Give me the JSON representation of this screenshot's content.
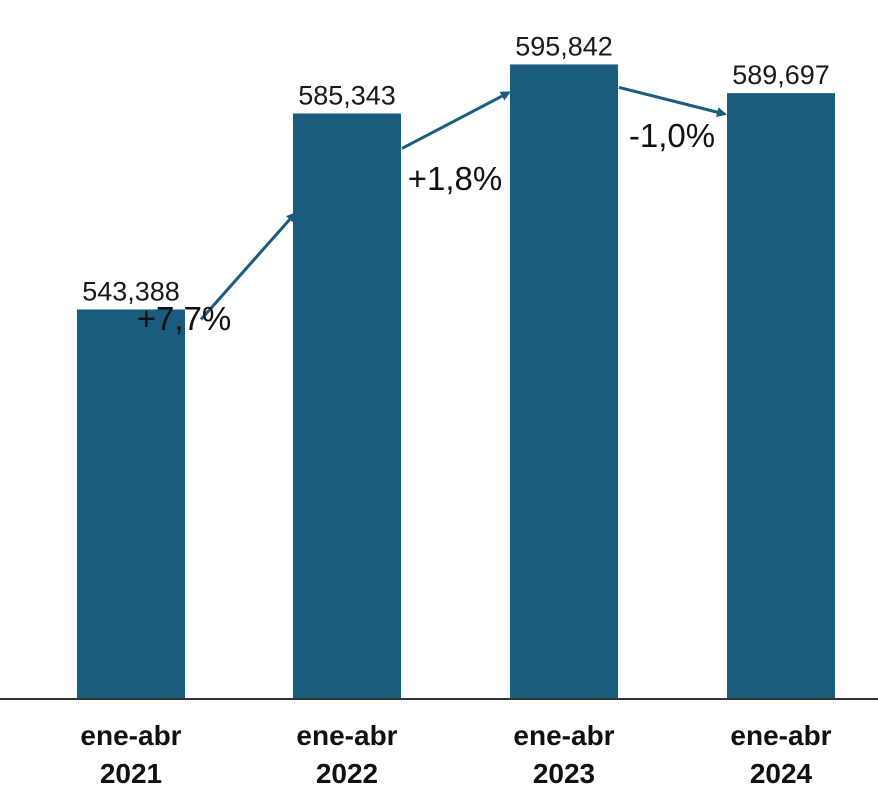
{
  "chart_data": {
    "type": "bar",
    "categories": [
      [
        "ene-abr",
        "2021"
      ],
      [
        "ene-abr",
        "2022"
      ],
      [
        "ene-abr",
        "2023"
      ],
      [
        "ene-abr",
        "2024"
      ]
    ],
    "values": [
      543388,
      585343,
      595842,
      589697
    ],
    "value_labels": [
      "543,388",
      "585,343",
      "595,842",
      "589,697"
    ],
    "changes": [
      "+7,7%",
      "+1,8%",
      "-1,0%"
    ],
    "ylim": [
      460000,
      600000
    ],
    "grid": false,
    "legend": "none",
    "colors": {
      "bar": "#1a5c7e",
      "arrow": "#1a5c7e",
      "axis": "#333333"
    }
  }
}
